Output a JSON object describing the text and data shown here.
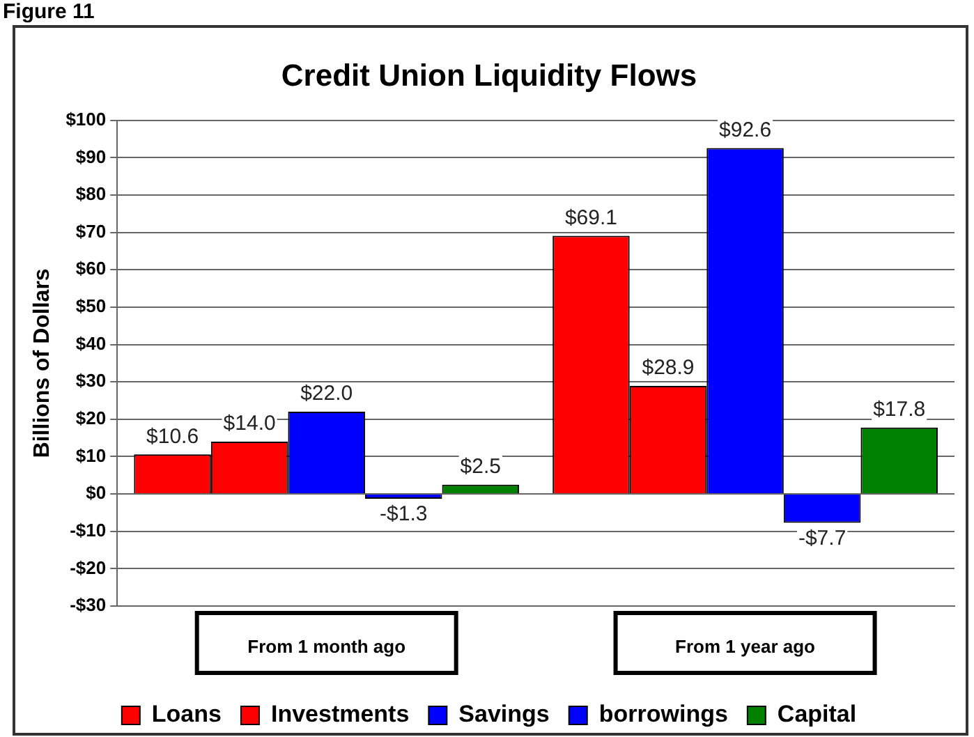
{
  "chart_data": {
    "type": "bar",
    "title": "Credit Union Liquidity Flows",
    "ylabel": "Billions of Dollars",
    "annotations": [
      "Figure 11"
    ],
    "categories": [
      "From 1 month ago",
      "From 1 year ago"
    ],
    "series": [
      {
        "name": "Loans",
        "color": "#ff0000",
        "values": [
          10.6,
          69.1
        ],
        "value_labels": [
          "$10.6",
          "$69.1"
        ]
      },
      {
        "name": "Investments",
        "color": "#ff0000",
        "values": [
          14.0,
          28.9
        ],
        "value_labels": [
          "$14.0",
          "$28.9"
        ]
      },
      {
        "name": "Savings",
        "color": "#0000ff",
        "values": [
          22.0,
          92.6
        ],
        "value_labels": [
          "$22.0",
          "$92.6"
        ]
      },
      {
        "name": "borrowings",
        "color": "#0000ff",
        "values": [
          -1.3,
          -7.7
        ],
        "value_labels": [
          "-$1.3",
          "-$7.7"
        ]
      },
      {
        "name": "Capital",
        "color": "#008000",
        "values": [
          2.5,
          17.8
        ],
        "value_labels": [
          "$2.5",
          "$17.8"
        ]
      }
    ],
    "ylim": [
      -30,
      100
    ],
    "yticks": [
      {
        "value": -30,
        "label": "-$30"
      },
      {
        "value": -20,
        "label": "-$20"
      },
      {
        "value": -10,
        "label": "-$10"
      },
      {
        "value": 0,
        "label": "$0"
      },
      {
        "value": 10,
        "label": "$10"
      },
      {
        "value": 20,
        "label": "$20"
      },
      {
        "value": 30,
        "label": "$30"
      },
      {
        "value": 40,
        "label": "$40"
      },
      {
        "value": 50,
        "label": "$50"
      },
      {
        "value": 60,
        "label": "$60"
      },
      {
        "value": 70,
        "label": "$70"
      },
      {
        "value": 80,
        "label": "$80"
      },
      {
        "value": 90,
        "label": "$90"
      },
      {
        "value": 100,
        "label": "$100"
      }
    ],
    "grid": "y",
    "legend": "bottom"
  }
}
